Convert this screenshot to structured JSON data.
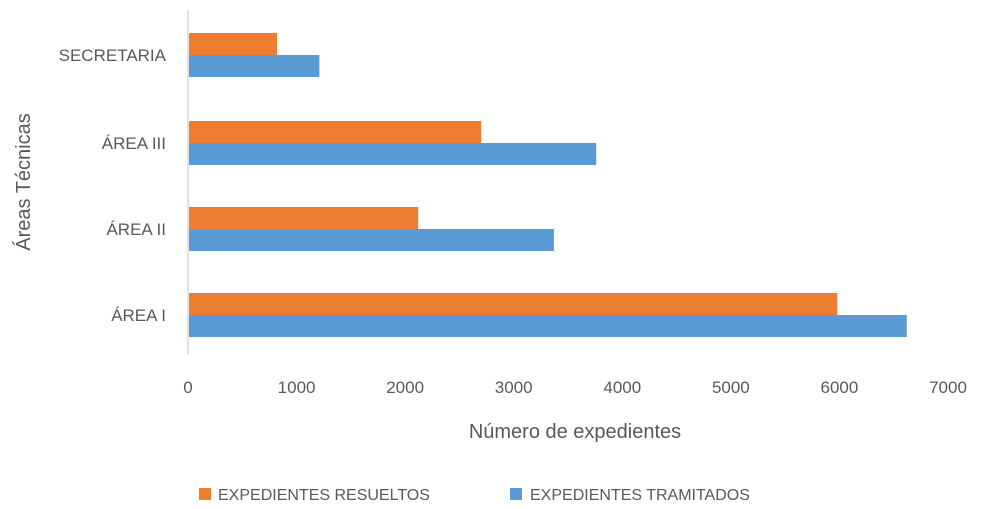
{
  "chart_data": {
    "type": "bar",
    "orientation": "horizontal",
    "categories": [
      "ÁREA I",
      "ÁREA II",
      "ÁREA III",
      "SECRETARIA"
    ],
    "series": [
      {
        "name": "EXPEDIENTES RESUELTOS",
        "color": "#ED7D31",
        "values": [
          5980,
          2120,
          2700,
          820
        ]
      },
      {
        "name": "EXPEDIENTES TRAMITADOS",
        "color": "#5B9BD5",
        "values": [
          6620,
          3370,
          3760,
          1210
        ]
      }
    ],
    "xlabel": "Número de expedientes",
    "ylabel": "Áreas Técnicas",
    "xlim": [
      0,
      7000
    ],
    "xticks": [
      "0",
      "1000",
      "2000",
      "3000",
      "4000",
      "5000",
      "6000",
      "7000"
    ],
    "grid": false,
    "legend": "bottom"
  }
}
